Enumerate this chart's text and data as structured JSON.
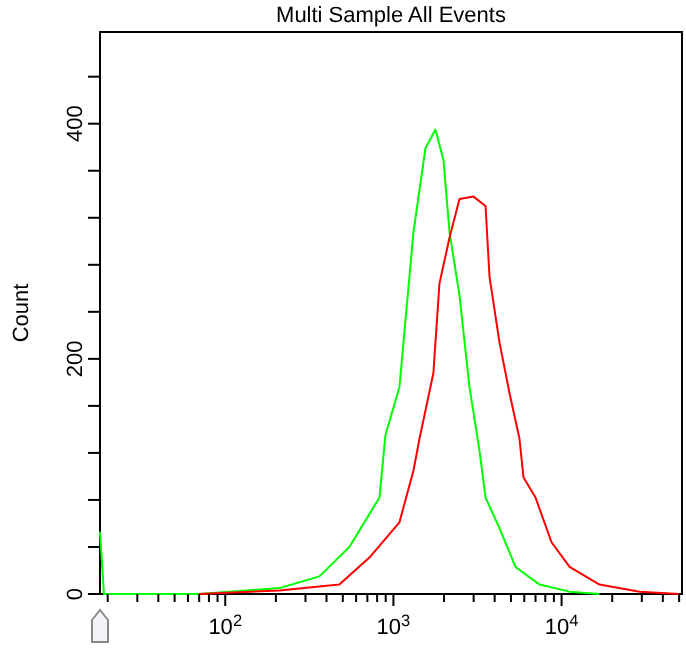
{
  "chart_data": {
    "type": "line",
    "title": "Multi Sample All Events",
    "ylabel": "Count",
    "log": "x",
    "grid": false,
    "line_style": "solid",
    "xlim": [
      18,
      52000
    ],
    "ylim": [
      0,
      478
    ],
    "xticks": [
      {
        "value": 20,
        "label": null
      },
      {
        "value": 30,
        "label": null
      },
      {
        "value": 40,
        "label": null
      },
      {
        "value": 50,
        "label": null
      },
      {
        "value": 60,
        "label": null
      },
      {
        "value": 70,
        "label": null
      },
      {
        "value": 80,
        "label": null
      },
      {
        "value": 90,
        "label": null
      },
      {
        "value": 100,
        "label": "10$^{2}$"
      },
      {
        "value": 200,
        "label": null
      },
      {
        "value": 300,
        "label": null
      },
      {
        "value": 400,
        "label": null
      },
      {
        "value": 500,
        "label": null
      },
      {
        "value": 600,
        "label": null
      },
      {
        "value": 700,
        "label": null
      },
      {
        "value": 800,
        "label": null
      },
      {
        "value": 900,
        "label": null
      },
      {
        "value": 1000,
        "label": "10$^{3}$"
      },
      {
        "value": 2000,
        "label": null
      },
      {
        "value": 3000,
        "label": null
      },
      {
        "value": 4000,
        "label": null
      },
      {
        "value": 5000,
        "label": null
      },
      {
        "value": 6000,
        "label": null
      },
      {
        "value": 7000,
        "label": null
      },
      {
        "value": 8000,
        "label": null
      },
      {
        "value": 9000,
        "label": null
      },
      {
        "value": 10000,
        "label": "10$^{4}$"
      },
      {
        "value": 20000,
        "label": null
      },
      {
        "value": 30000,
        "label": null
      },
      {
        "value": 40000,
        "label": null
      },
      {
        "value": 50000,
        "label": null
      }
    ],
    "yticks": [
      0,
      {
        "value": 40,
        "label": null
      },
      {
        "value": 80,
        "label": null
      },
      {
        "value": 120,
        "label": null
      },
      {
        "value": 160,
        "label": null
      },
      200,
      {
        "value": 240,
        "label": null
      },
      {
        "value": 280,
        "label": null
      },
      {
        "value": 320,
        "label": null
      },
      {
        "value": 360,
        "label": null
      },
      400,
      {
        "value": 440,
        "label": null
      }
    ],
    "series": [
      {
        "color": "#00ff00",
        "x": [
          18,
          19,
          70,
          210,
          363,
          547,
          826,
          896,
          1086,
          1316,
          1550,
          1778,
          1985,
          2155,
          2471,
          2833,
          3250,
          3530,
          4273,
          5320,
          7400,
          11160,
          16800
        ],
        "values": [
          53,
          0,
          0,
          5,
          15,
          40,
          82,
          135,
          176,
          308,
          379,
          395,
          369,
          308,
          254,
          176,
          122,
          82,
          56,
          23,
          8,
          2,
          0
        ]
      },
      {
        "color": "#ff0000",
        "x": [
          70,
          210,
          477,
          720,
          1086,
          1316,
          1429,
          1729,
          1878,
          2155,
          2471,
          2993,
          3530,
          3727,
          4273,
          4900,
          5620,
          5940,
          7000,
          8710,
          11160,
          16800,
          29100,
          50000
        ],
        "values": [
          0,
          3,
          8,
          31,
          61,
          105,
          132,
          188,
          264,
          303,
          336,
          338,
          330,
          270,
          214,
          171,
          132,
          99,
          82,
          44,
          23,
          8,
          2,
          0
        ]
      }
    ]
  }
}
